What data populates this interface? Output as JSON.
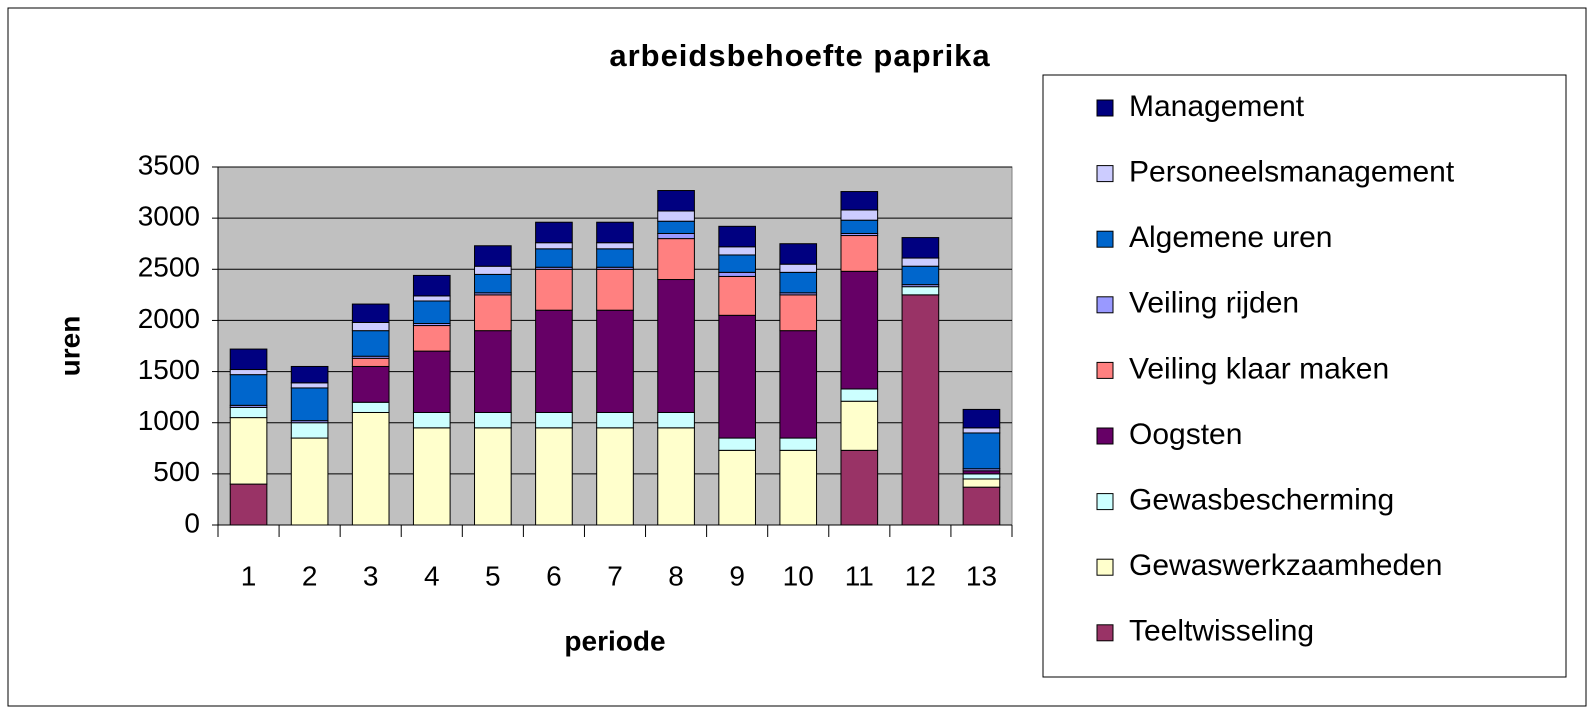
{
  "chart_data": {
    "type": "stacked_bar",
    "title": "arbeidsbehoefte paprika",
    "x_label": "periode",
    "y_label": "uren",
    "categories": [
      "1",
      "2",
      "3",
      "4",
      "5",
      "6",
      "7",
      "8",
      "9",
      "10",
      "11",
      "12",
      "13"
    ],
    "series": [
      {
        "name": "Teeltwisseling",
        "color": "#993366",
        "values": [
          400,
          0,
          0,
          0,
          0,
          0,
          0,
          0,
          0,
          0,
          730,
          2250,
          370
        ]
      },
      {
        "name": "Gewaswerkzaamheden",
        "color": "#FFFFCC",
        "values": [
          650,
          850,
          1100,
          950,
          950,
          950,
          950,
          950,
          730,
          730,
          480,
          0,
          80
        ]
      },
      {
        "name": "Gewasbescherming",
        "color": "#CCFFFF",
        "values": [
          100,
          150,
          100,
          150,
          150,
          150,
          150,
          150,
          120,
          120,
          120,
          80,
          50
        ]
      },
      {
        "name": "Oogsten",
        "color": "#660066",
        "values": [
          0,
          0,
          350,
          600,
          800,
          1000,
          1000,
          1300,
          1200,
          1050,
          1150,
          0,
          30
        ]
      },
      {
        "name": "Veiling klaar maken",
        "color": "#FF8080",
        "values": [
          0,
          0,
          80,
          250,
          350,
          400,
          400,
          400,
          380,
          350,
          350,
          0,
          0
        ]
      },
      {
        "name": "Veiling rijden",
        "color": "#9999FF",
        "values": [
          20,
          20,
          20,
          20,
          20,
          20,
          20,
          50,
          40,
          20,
          20,
          20,
          20
        ]
      },
      {
        "name": "Algemene uren",
        "color": "#0066CC",
        "values": [
          300,
          320,
          250,
          220,
          180,
          180,
          180,
          120,
          170,
          200,
          130,
          180,
          350
        ]
      },
      {
        "name": "Personeelsmanagement",
        "color": "#CCCCFF",
        "values": [
          50,
          50,
          80,
          50,
          80,
          60,
          60,
          100,
          80,
          80,
          100,
          80,
          50
        ]
      },
      {
        "name": "Management",
        "color": "#000080",
        "values": [
          200,
          160,
          180,
          200,
          200,
          200,
          200,
          200,
          200,
          200,
          180,
          200,
          180
        ]
      }
    ],
    "ylim": [
      0,
      3500
    ],
    "yticks": [
      0,
      500,
      1000,
      1500,
      2000,
      2500,
      3000,
      3500
    ],
    "grid": true
  }
}
